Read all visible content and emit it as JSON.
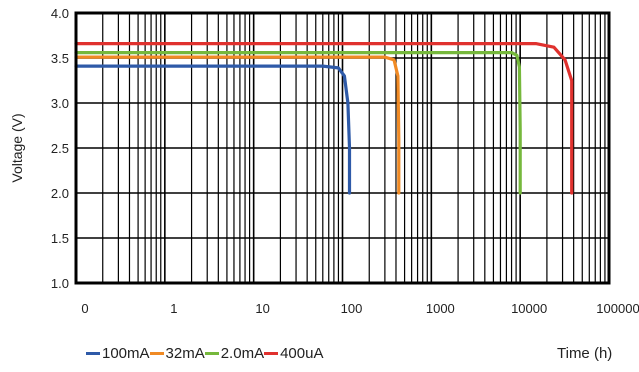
{
  "chart_data": {
    "type": "line",
    "ylabel": "Voltage (V)",
    "xlabel": "Time (h)",
    "x_scale": "log",
    "ylim": [
      1.0,
      4.0
    ],
    "y_ticks": [
      "1.0",
      "1.5",
      "2.0",
      "2.5",
      "3.0",
      "3.5",
      "4.0"
    ],
    "x_ticks": [
      "0",
      "1",
      "10",
      "100",
      "1000",
      "10000",
      "100000"
    ],
    "grid": true,
    "legend_position": "bottom-left",
    "series": [
      {
        "name": "100mA",
        "color": "#2e5aa8",
        "x": [
          0.1,
          60,
          90,
          105,
          115,
          120,
          120
        ],
        "y": [
          3.41,
          3.41,
          3.39,
          3.3,
          3.0,
          2.5,
          2.0
        ]
      },
      {
        "name": "32mA",
        "color": "#f08a24",
        "x": [
          0.1,
          300,
          380,
          420,
          430,
          430
        ],
        "y": [
          3.51,
          3.51,
          3.48,
          3.3,
          2.6,
          2.0
        ]
      },
      {
        "name": "2.0mA",
        "color": "#76b83c",
        "x": [
          0.1,
          8000,
          9200,
          9800,
          10000,
          10000
        ],
        "y": [
          3.56,
          3.56,
          3.53,
          3.4,
          2.7,
          2.0
        ]
      },
      {
        "name": "400uA",
        "color": "#e0312e",
        "x": [
          0.1,
          15000,
          24000,
          32000,
          38000,
          38000
        ],
        "y": [
          3.66,
          3.66,
          3.62,
          3.48,
          3.25,
          2.0
        ]
      }
    ]
  }
}
